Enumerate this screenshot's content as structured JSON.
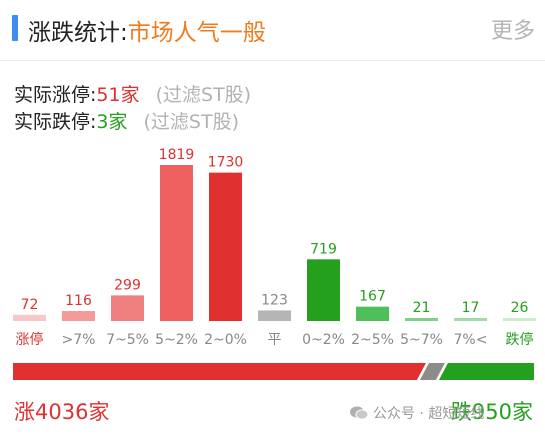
{
  "header": {
    "title_prefix": "涨跌统计:",
    "sentiment": "市场人气一般",
    "more_label": "更多"
  },
  "limit_stats": {
    "up_label": "实际涨停:",
    "up_value": "51家",
    "down_label": "实际跌停:",
    "down_value": "3家",
    "filter_note": "(过滤ST股)"
  },
  "colors": {
    "up_strong": "#e03030",
    "up_mid": "#ef6060",
    "up_light": "#f49a9a",
    "up_pale": "#f8c8c8",
    "flat": "#b5b5b5",
    "down_strong": "#24a01e",
    "down_mid": "#4fbf5b",
    "down_light": "#a3dba6",
    "down_pale": "#cdeccd"
  },
  "chart_data": {
    "type": "bar",
    "categories": [
      "涨停",
      ">7%",
      "7~5%",
      "5~2%",
      "2~0%",
      "平",
      "0~2%",
      "2~5%",
      "5~7%",
      "7%<",
      "跌停"
    ],
    "values": [
      72,
      116,
      299,
      1819,
      1730,
      123,
      719,
      167,
      21,
      17,
      26
    ],
    "value_labels": [
      "72",
      "116",
      "299",
      "1819",
      "1730",
      "123",
      "719",
      "167",
      "21",
      "17",
      "26"
    ],
    "bar_colors": [
      "#f8c8c8",
      "#f49a9a",
      "#f08080",
      "#ef6060",
      "#e03030",
      "#b5b5b5",
      "#24a01e",
      "#4fbf5b",
      "#7fd08a",
      "#a3dba6",
      "#cdeccd"
    ],
    "label_colors": [
      "#e03030",
      "#888888",
      "#888888",
      "#888888",
      "#888888",
      "#888888",
      "#888888",
      "#888888",
      "#888888",
      "#888888",
      "#24a01e"
    ],
    "value_label_colors": [
      "#e03030",
      "#e03030",
      "#e03030",
      "#e03030",
      "#e03030",
      "#888888",
      "#24a01e",
      "#24a01e",
      "#24a01e",
      "#24a01e",
      "#24a01e"
    ],
    "ylim": [
      0,
      1819
    ],
    "grid": false
  },
  "totals": {
    "up_label": "涨4036家",
    "down_label": "跌950家",
    "up_count": 4036,
    "down_count": 950
  },
  "watermark": {
    "text": "公众号 · 超短短线",
    "icon": "wechat-icon"
  }
}
